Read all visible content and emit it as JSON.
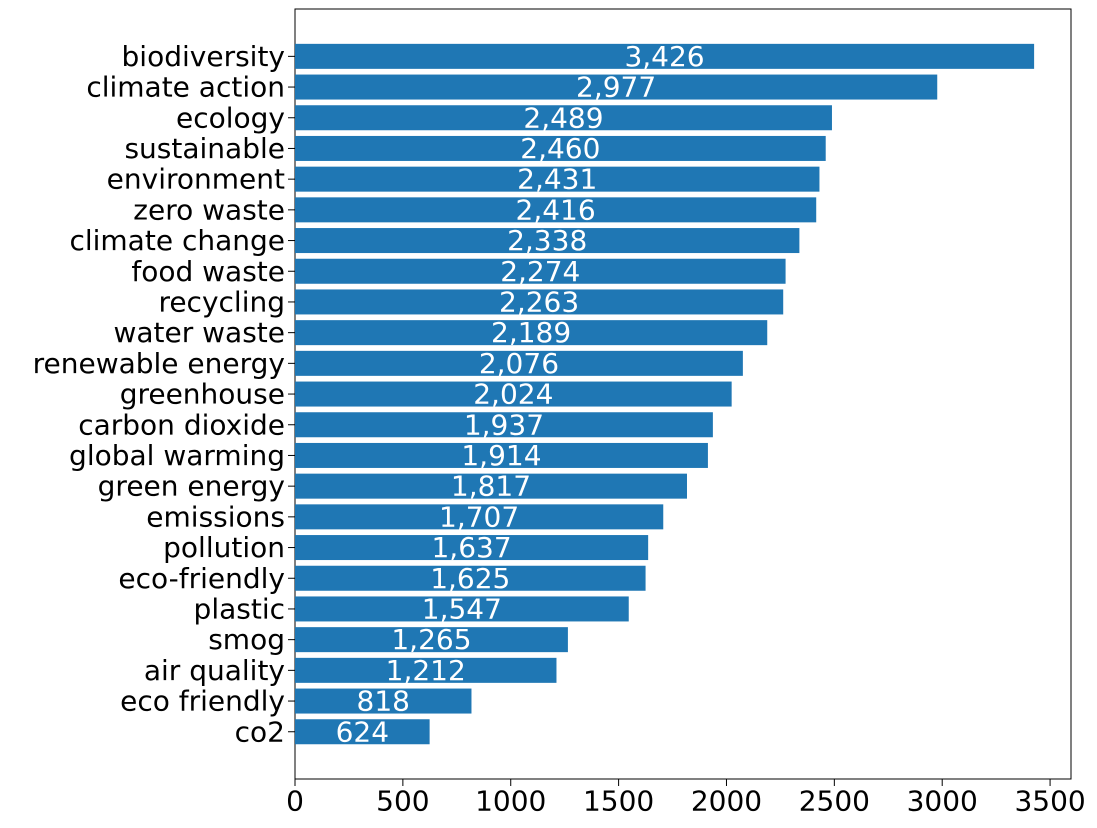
{
  "chart_data": {
    "type": "bar",
    "orientation": "horizontal",
    "categories": [
      "biodiversity",
      "climate action",
      "ecology",
      "sustainable",
      "environment",
      "zero waste",
      "climate change",
      "food waste",
      "recycling",
      "water waste",
      "renewable energy",
      "greenhouse",
      "carbon dioxide",
      "global warming",
      "green energy",
      "emissions",
      "pollution",
      "eco-friendly",
      "plastic",
      "smog",
      "air quality",
      "eco friendly",
      "co2"
    ],
    "values": [
      3426,
      2977,
      2489,
      2460,
      2431,
      2416,
      2338,
      2274,
      2263,
      2189,
      2076,
      2024,
      1937,
      1914,
      1817,
      1707,
      1637,
      1625,
      1547,
      1265,
      1212,
      818,
      624
    ],
    "data_labels": [
      "3,426",
      "2,977",
      "2,489",
      "2,460",
      "2,431",
      "2,416",
      "2,338",
      "2,274",
      "2,263",
      "2,189",
      "2,076",
      "2,024",
      "1,937",
      "1,914",
      "1,817",
      "1,707",
      "1,637",
      "1,625",
      "1,547",
      "1,265",
      "1,212",
      "818",
      "624"
    ],
    "xticks": [
      0,
      500,
      1000,
      1500,
      2000,
      2500,
      3000,
      3500
    ],
    "xlim": [
      0,
      3597
    ],
    "title": "",
    "xlabel": "",
    "ylabel": "",
    "grid": false,
    "bar_color": "#1f77b4",
    "label_color": "#ffffff"
  }
}
